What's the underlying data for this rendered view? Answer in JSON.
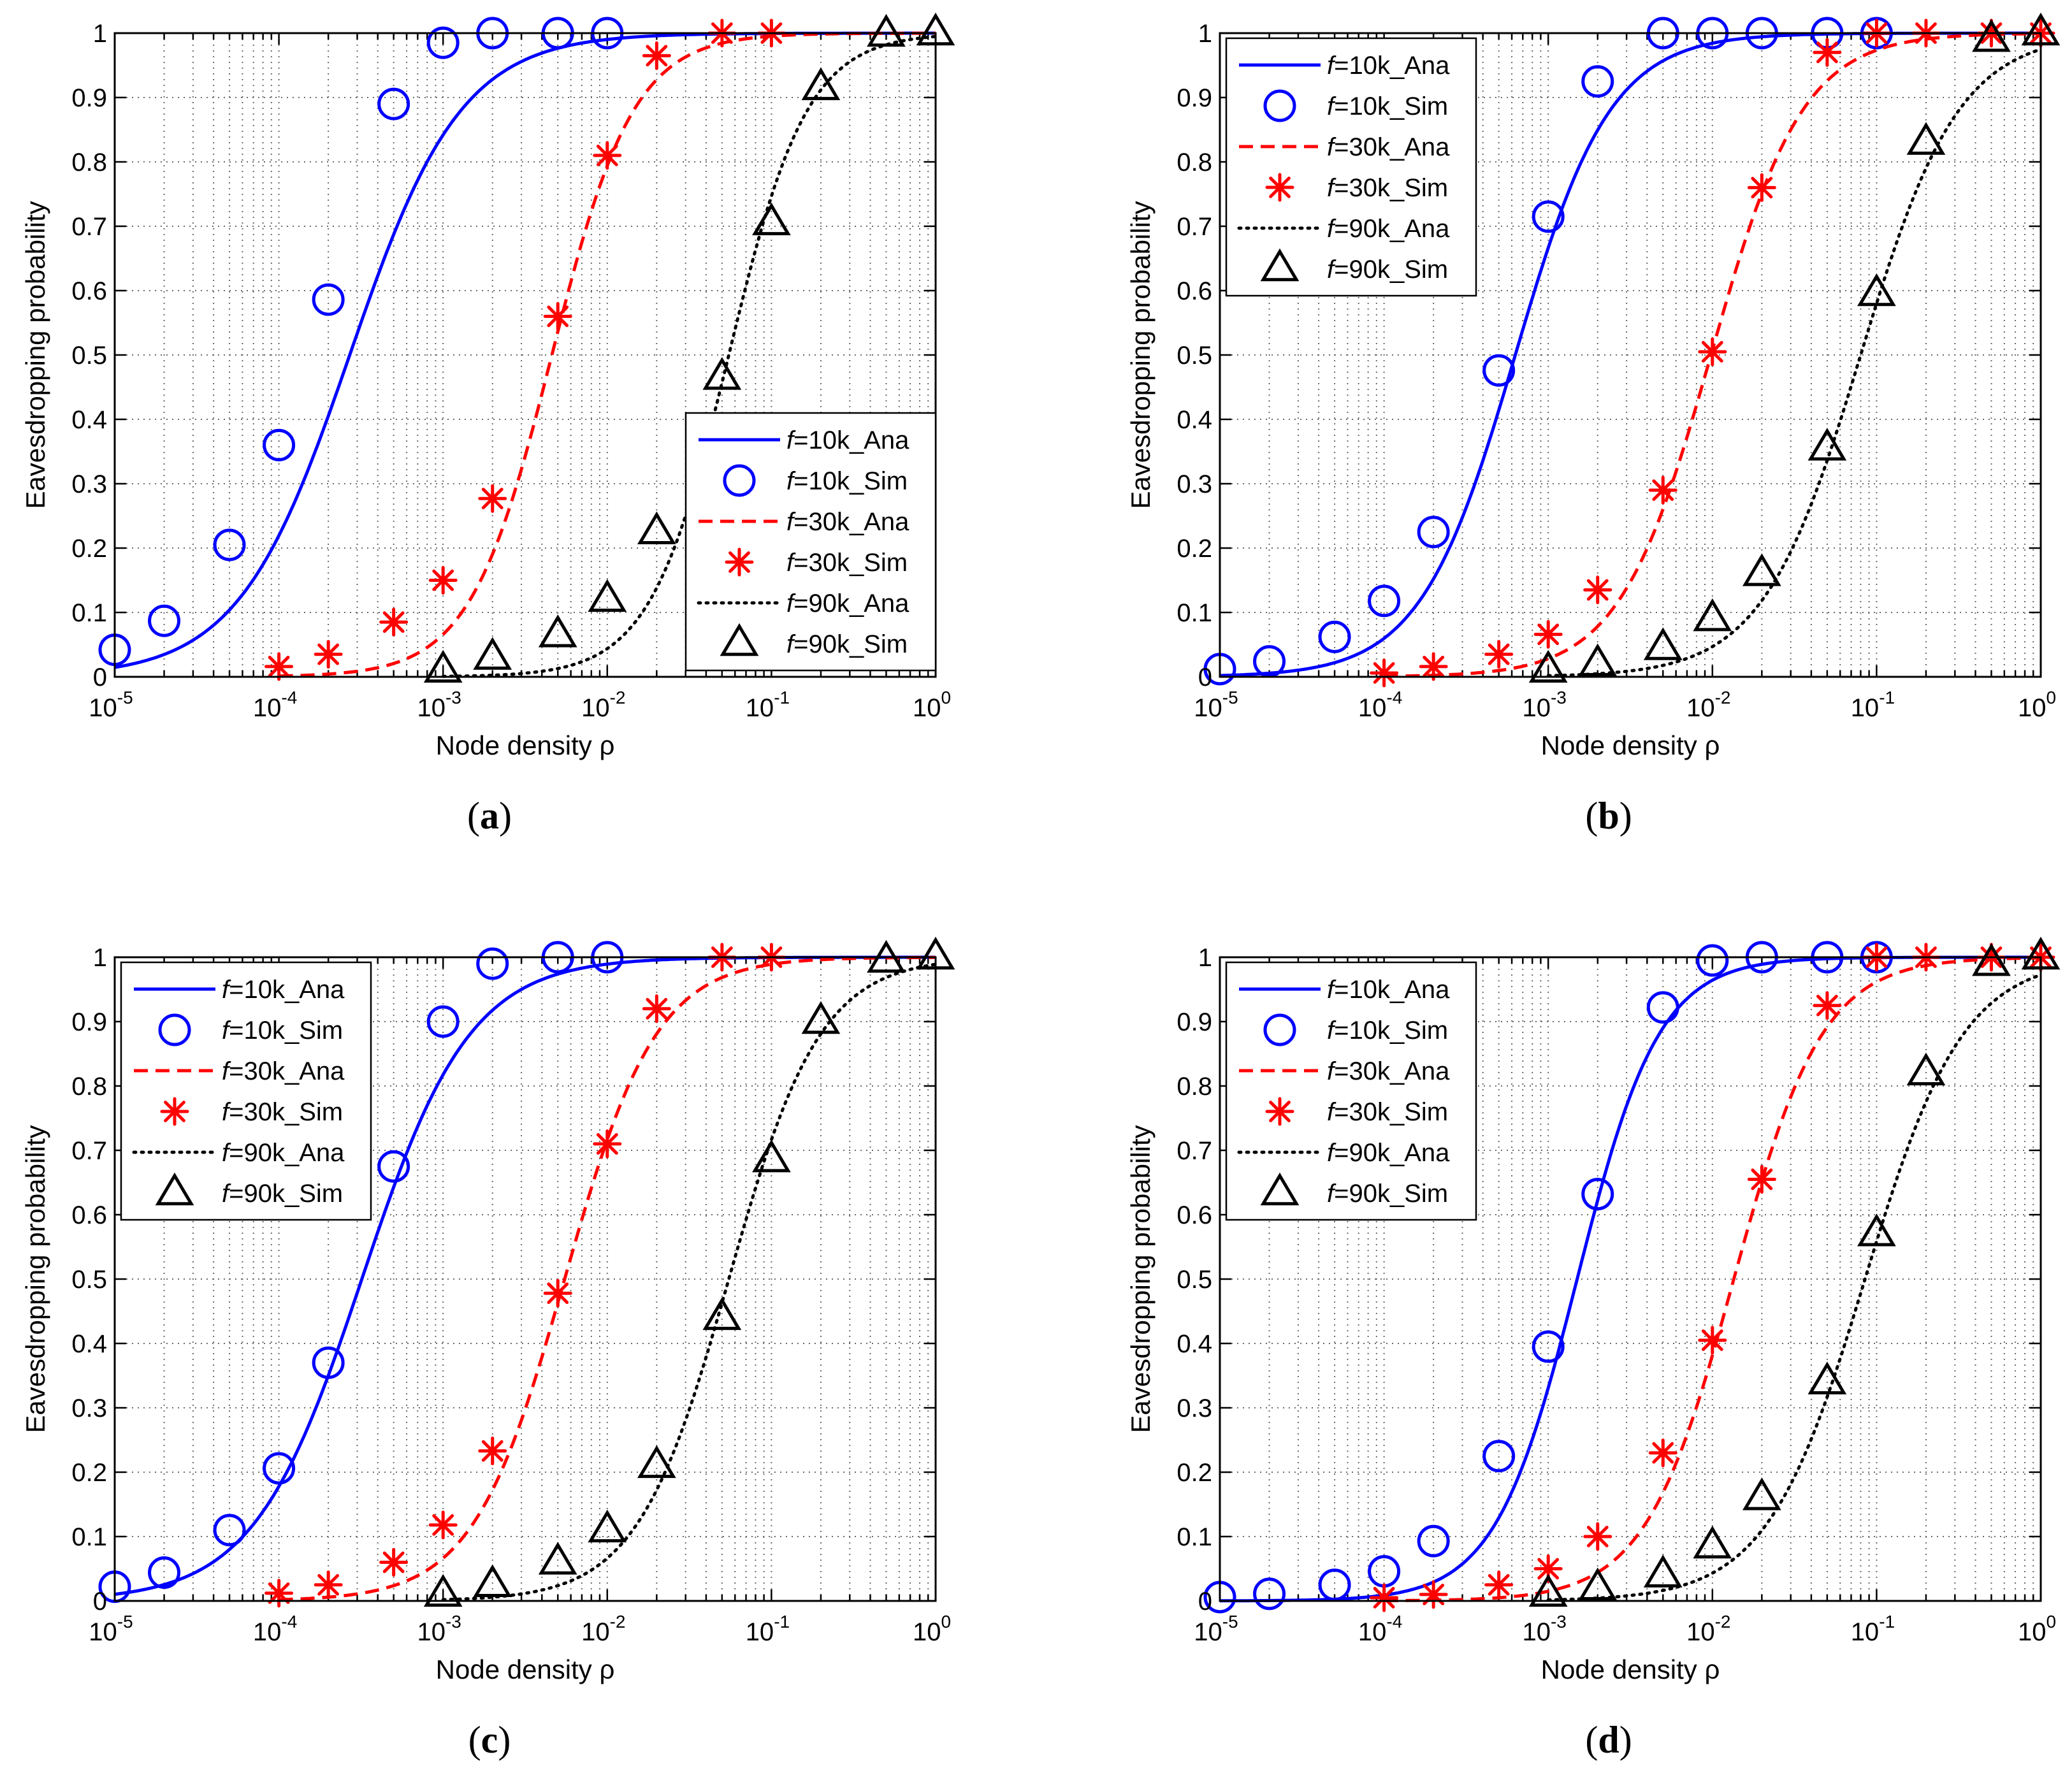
{
  "figure": {
    "panels": [
      "a",
      "b",
      "c",
      "d"
    ],
    "captions": [
      {
        "open": "(",
        "letter": "a",
        "close": ")"
      },
      {
        "open": "(",
        "letter": "b",
        "close": ")"
      },
      {
        "open": "(",
        "letter": "c",
        "close": ")"
      },
      {
        "open": "(",
        "letter": "d",
        "close": ")"
      }
    ]
  },
  "chart_data": [
    {
      "type": "line",
      "panel": "a",
      "xlabel": "Node density ρ",
      "ylabel": "Eavesdropping probability",
      "xscale": "log",
      "xlim": [
        1e-05,
        1
      ],
      "ylim": [
        0,
        1
      ],
      "grid": true,
      "legend_position": "lower-right",
      "x_tick_labels": [
        {
          "base": "10",
          "exp": "-5"
        },
        {
          "base": "10",
          "exp": "-4"
        },
        {
          "base": "10",
          "exp": "-3"
        },
        {
          "base": "10",
          "exp": "-2"
        },
        {
          "base": "10",
          "exp": "-1"
        },
        {
          "base": "10",
          "exp": "0"
        }
      ],
      "y_tick_labels": [
        "0",
        "0.1",
        "0.2",
        "0.3",
        "0.4",
        "0.5",
        "0.6",
        "0.7",
        "0.8",
        "0.9",
        "1"
      ],
      "series": [
        {
          "name": "f=10k",
          "color": "#0000ff",
          "marker": "circle",
          "label_italic": "f",
          "label_ana": "=10k_Ana",
          "label_sim": "=10k_Sim",
          "x0": 0.00027,
          "w": 0.34,
          "sim_x": [
            1e-05,
            2e-05,
            5e-05,
            0.0001,
            0.0002,
            0.0005,
            0.001,
            0.002,
            0.005,
            0.01
          ],
          "sim_y": [
            0.042,
            0.087,
            0.205,
            0.36,
            0.586,
            0.89,
            0.985,
            1.0,
            1.0,
            1.0
          ]
        },
        {
          "name": "f=30k",
          "color": "#ff0000",
          "marker": "asterisk",
          "label_italic": "f",
          "label_ana": "=30k_Ana",
          "label_sim": "=30k_Sim",
          "x0": 0.0046,
          "w": 0.25,
          "sim_x": [
            0.0001,
            0.0002,
            0.0005,
            0.001,
            0.002,
            0.005,
            0.01,
            0.02,
            0.05,
            0.1
          ],
          "sim_y": [
            0.016,
            0.035,
            0.085,
            0.15,
            0.277,
            0.56,
            0.81,
            0.965,
            1.0,
            1.0
          ]
        },
        {
          "name": "f=90k",
          "color": "#000000",
          "marker": "triangle",
          "label_italic": "f",
          "label_ana": "=90k_Ana",
          "label_sim": "=90k_Sim",
          "x0": 0.055,
          "w": 0.24,
          "sim_x": [
            0.001,
            0.002,
            0.005,
            0.01,
            0.02,
            0.05,
            0.1,
            0.2,
            0.5,
            1.0
          ],
          "sim_y": [
            0.01,
            0.03,
            0.065,
            0.12,
            0.225,
            0.465,
            0.705,
            0.915,
            0.998,
            1.0
          ]
        }
      ]
    },
    {
      "type": "line",
      "panel": "b",
      "xlabel": "Node density ρ",
      "ylabel": "Eavesdropping probability",
      "xscale": "log",
      "xlim": [
        1e-05,
        1
      ],
      "ylim": [
        0,
        1
      ],
      "grid": true,
      "legend_position": "top-left",
      "x_tick_labels": [
        {
          "base": "10",
          "exp": "-5"
        },
        {
          "base": "10",
          "exp": "-4"
        },
        {
          "base": "10",
          "exp": "-3"
        },
        {
          "base": "10",
          "exp": "-2"
        },
        {
          "base": "10",
          "exp": "-1"
        },
        {
          "base": "10",
          "exp": "0"
        }
      ],
      "y_tick_labels": [
        "0",
        "0.1",
        "0.2",
        "0.3",
        "0.4",
        "0.5",
        "0.6",
        "0.7",
        "0.8",
        "0.9",
        "1"
      ],
      "series": [
        {
          "name": "f=10k",
          "color": "#0000ff",
          "marker": "circle",
          "label_italic": "f",
          "label_ana": "=10k_Ana",
          "label_sim": "=10k_Sim",
          "x0": 0.00063,
          "w": 0.29,
          "sim_x": [
            1e-05,
            2e-05,
            5e-05,
            0.0001,
            0.0002,
            0.0005,
            0.001,
            0.002,
            0.005,
            0.01,
            0.02,
            0.05,
            0.1
          ],
          "sim_y": [
            0.012,
            0.024,
            0.062,
            0.118,
            0.225,
            0.476,
            0.715,
            0.925,
            1.0,
            1.0,
            1.0,
            1.0,
            1.0
          ]
        },
        {
          "name": "f=30k",
          "color": "#ff0000",
          "marker": "asterisk",
          "label_italic": "f",
          "label_ana": "=30k_Ana",
          "label_sim": "=30k_Sim",
          "x0": 0.0098,
          "w": 0.28,
          "sim_x": [
            0.0001,
            0.0002,
            0.0005,
            0.001,
            0.002,
            0.005,
            0.01,
            0.02,
            0.05,
            0.1,
            0.2,
            0.5,
            1.0
          ],
          "sim_y": [
            0.006,
            0.016,
            0.035,
            0.066,
            0.135,
            0.29,
            0.505,
            0.76,
            0.97,
            1.0,
            1.0,
            1.0,
            1.0
          ]
        },
        {
          "name": "f=90k",
          "color": "#000000",
          "marker": "triangle",
          "label_italic": "f",
          "label_ana": "=90k_Ana",
          "label_sim": "=90k_Sim",
          "x0": 0.08,
          "w": 0.3,
          "sim_x": [
            0.001,
            0.002,
            0.005,
            0.01,
            0.02,
            0.05,
            0.1,
            0.2,
            0.5,
            1.0
          ],
          "sim_y": [
            0.01,
            0.02,
            0.045,
            0.09,
            0.16,
            0.355,
            0.595,
            0.83,
            0.99,
            1.0
          ]
        }
      ]
    },
    {
      "type": "line",
      "panel": "c",
      "xlabel": "Node density ρ",
      "ylabel": "Eavesdropping probability",
      "xscale": "log",
      "xlim": [
        1e-05,
        1
      ],
      "ylim": [
        0,
        1
      ],
      "grid": true,
      "legend_position": "top-left",
      "x_tick_labels": [
        {
          "base": "10",
          "exp": "-5"
        },
        {
          "base": "10",
          "exp": "-4"
        },
        {
          "base": "10",
          "exp": "-3"
        },
        {
          "base": "10",
          "exp": "-2"
        },
        {
          "base": "10",
          "exp": "-1"
        },
        {
          "base": "10",
          "exp": "0"
        }
      ],
      "y_tick_labels": [
        "0",
        "0.1",
        "0.2",
        "0.3",
        "0.4",
        "0.5",
        "0.6",
        "0.7",
        "0.8",
        "0.9",
        "1"
      ],
      "series": [
        {
          "name": "f=10k",
          "color": "#0000ff",
          "marker": "circle",
          "label_italic": "f",
          "label_ana": "=10k_Ana",
          "label_sim": "=10k_Sim",
          "x0": 0.00032,
          "w": 0.33,
          "sim_x": [
            1e-05,
            2e-05,
            5e-05,
            0.0001,
            0.0002,
            0.0005,
            0.001,
            0.002,
            0.005,
            0.01
          ],
          "sim_y": [
            0.022,
            0.044,
            0.11,
            0.206,
            0.37,
            0.675,
            0.9,
            0.99,
            1.0,
            1.0
          ]
        },
        {
          "name": "f=30k",
          "color": "#ff0000",
          "marker": "asterisk",
          "label_italic": "f",
          "label_ana": "=30k_Ana",
          "label_sim": "=30k_Sim",
          "x0": 0.0055,
          "w": 0.28,
          "sim_x": [
            0.0001,
            0.0002,
            0.0005,
            0.001,
            0.002,
            0.005,
            0.01,
            0.02,
            0.05,
            0.1
          ],
          "sim_y": [
            0.012,
            0.025,
            0.06,
            0.118,
            0.233,
            0.478,
            0.71,
            0.92,
            1.0,
            1.0
          ]
        },
        {
          "name": "f=90k",
          "color": "#000000",
          "marker": "triangle",
          "label_italic": "f",
          "label_ana": "=90k_Ana",
          "label_sim": "=90k_Sim",
          "x0": 0.055,
          "w": 0.28,
          "sim_x": [
            0.001,
            0.002,
            0.005,
            0.01,
            0.02,
            0.05,
            0.1,
            0.2,
            0.5,
            1.0
          ],
          "sim_y": [
            0.01,
            0.025,
            0.06,
            0.11,
            0.21,
            0.44,
            0.685,
            0.9,
            0.995,
            1.0
          ]
        }
      ]
    },
    {
      "type": "line",
      "panel": "d",
      "xlabel": "Node density ρ",
      "ylabel": "Eavesdropping probability",
      "xscale": "log",
      "xlim": [
        1e-05,
        1
      ],
      "ylim": [
        0,
        1
      ],
      "grid": true,
      "legend_position": "top-left",
      "x_tick_labels": [
        {
          "base": "10",
          "exp": "-5"
        },
        {
          "base": "10",
          "exp": "-4"
        },
        {
          "base": "10",
          "exp": "-3"
        },
        {
          "base": "10",
          "exp": "-2"
        },
        {
          "base": "10",
          "exp": "-1"
        },
        {
          "base": "10",
          "exp": "0"
        }
      ],
      "y_tick_labels": [
        "0",
        "0.1",
        "0.2",
        "0.3",
        "0.4",
        "0.5",
        "0.6",
        "0.7",
        "0.8",
        "0.9",
        "1"
      ],
      "series": [
        {
          "name": "f=10k",
          "color": "#0000ff",
          "marker": "circle",
          "label_italic": "f",
          "label_ana": "=10k_Ana",
          "label_sim": "=10k_Sim",
          "x0": 0.0015,
          "w": 0.25,
          "sim_x": [
            1e-05,
            2e-05,
            5e-05,
            0.0001,
            0.0002,
            0.0005,
            0.001,
            0.002,
            0.005,
            0.01,
            0.02,
            0.05,
            0.1
          ],
          "sim_y": [
            0.006,
            0.011,
            0.025,
            0.046,
            0.093,
            0.225,
            0.395,
            0.632,
            0.922,
            0.995,
            1.0,
            1.0,
            1.0
          ]
        },
        {
          "name": "f=30k",
          "color": "#ff0000",
          "marker": "asterisk",
          "label_italic": "f",
          "label_ana": "=30k_Ana",
          "label_sim": "=30k_Sim",
          "x0": 0.0135,
          "w": 0.27,
          "sim_x": [
            0.0001,
            0.0002,
            0.0005,
            0.001,
            0.002,
            0.005,
            0.01,
            0.02,
            0.05,
            0.1,
            0.2,
            0.5,
            1.0
          ],
          "sim_y": [
            0.005,
            0.01,
            0.025,
            0.05,
            0.1,
            0.23,
            0.405,
            0.655,
            0.925,
            1.0,
            1.0,
            1.0,
            1.0
          ]
        },
        {
          "name": "f=90k",
          "color": "#000000",
          "marker": "triangle",
          "label_italic": "f",
          "label_ana": "=90k_Ana",
          "label_sim": "=90k_Sim",
          "x0": 0.085,
          "w": 0.3,
          "sim_x": [
            0.001,
            0.002,
            0.005,
            0.01,
            0.02,
            0.05,
            0.1,
            0.2,
            0.5,
            1.0
          ],
          "sim_y": [
            0.01,
            0.02,
            0.04,
            0.085,
            0.16,
            0.34,
            0.57,
            0.82,
            0.99,
            1.0
          ]
        }
      ]
    }
  ]
}
